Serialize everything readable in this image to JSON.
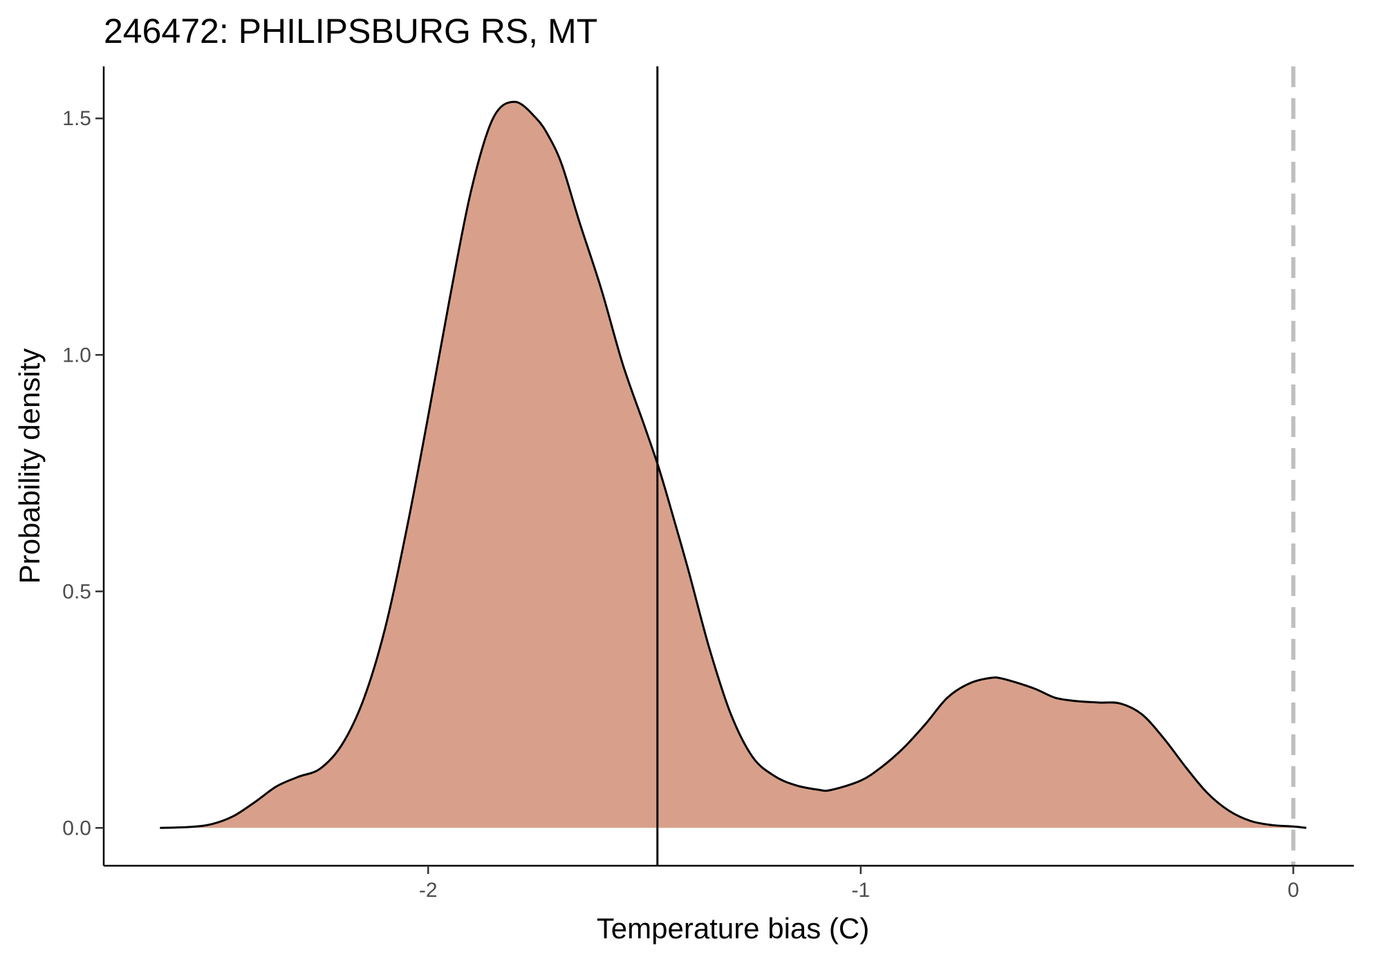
{
  "chart_data": {
    "type": "area",
    "title": "246472: PHILIPSBURG RS, MT",
    "xlabel": "Temperature bias (C)",
    "ylabel": "Probability density",
    "xlim": [
      -2.75,
      0.14
    ],
    "ylim": [
      -0.08,
      1.61
    ],
    "x_ticks": [
      -2,
      -1,
      0
    ],
    "x_tick_labels": [
      "-2",
      "-1",
      "0"
    ],
    "y_ticks": [
      0.0,
      0.5,
      1.0,
      1.5
    ],
    "y_tick_labels": [
      "0.0",
      "0.5",
      "1.0",
      "1.5"
    ],
    "grid": false,
    "legend": "none",
    "fill_color": "#d8a08b",
    "line_color": "#000000",
    "reference_lines": [
      {
        "x": -1.47,
        "style": "solid",
        "color": "#000000"
      },
      {
        "x": 0.0,
        "style": "dashed",
        "color": "#bfbfbf"
      }
    ],
    "series": [
      {
        "x": [
          -2.62,
          -2.55,
          -2.5,
          -2.45,
          -2.4,
          -2.35,
          -2.3,
          -2.25,
          -2.2,
          -2.15,
          -2.1,
          -2.05,
          -2.0,
          -1.95,
          -1.9,
          -1.85,
          -1.8,
          -1.75,
          -1.72,
          -1.69,
          -1.65,
          -1.6,
          -1.55,
          -1.5,
          -1.47,
          -1.45,
          -1.4,
          -1.35,
          -1.3,
          -1.25,
          -1.2,
          -1.15,
          -1.1,
          -1.07,
          -1.0,
          -0.95,
          -0.9,
          -0.85,
          -0.8,
          -0.75,
          -0.7,
          -0.67,
          -0.6,
          -0.55,
          -0.5,
          -0.45,
          -0.4,
          -0.35,
          -0.3,
          -0.25,
          -0.2,
          -0.15,
          -0.1,
          -0.05,
          0.0,
          0.03
        ],
        "y": [
          0.0,
          0.002,
          0.008,
          0.025,
          0.055,
          0.088,
          0.108,
          0.125,
          0.175,
          0.27,
          0.42,
          0.63,
          0.87,
          1.12,
          1.35,
          1.5,
          1.535,
          1.5,
          1.46,
          1.4,
          1.28,
          1.14,
          0.98,
          0.85,
          0.77,
          0.71,
          0.55,
          0.38,
          0.24,
          0.15,
          0.11,
          0.09,
          0.081,
          0.08,
          0.1,
          0.13,
          0.17,
          0.22,
          0.275,
          0.305,
          0.317,
          0.315,
          0.295,
          0.275,
          0.268,
          0.265,
          0.263,
          0.24,
          0.19,
          0.13,
          0.075,
          0.037,
          0.015,
          0.006,
          0.003,
          0.0
        ]
      }
    ]
  }
}
